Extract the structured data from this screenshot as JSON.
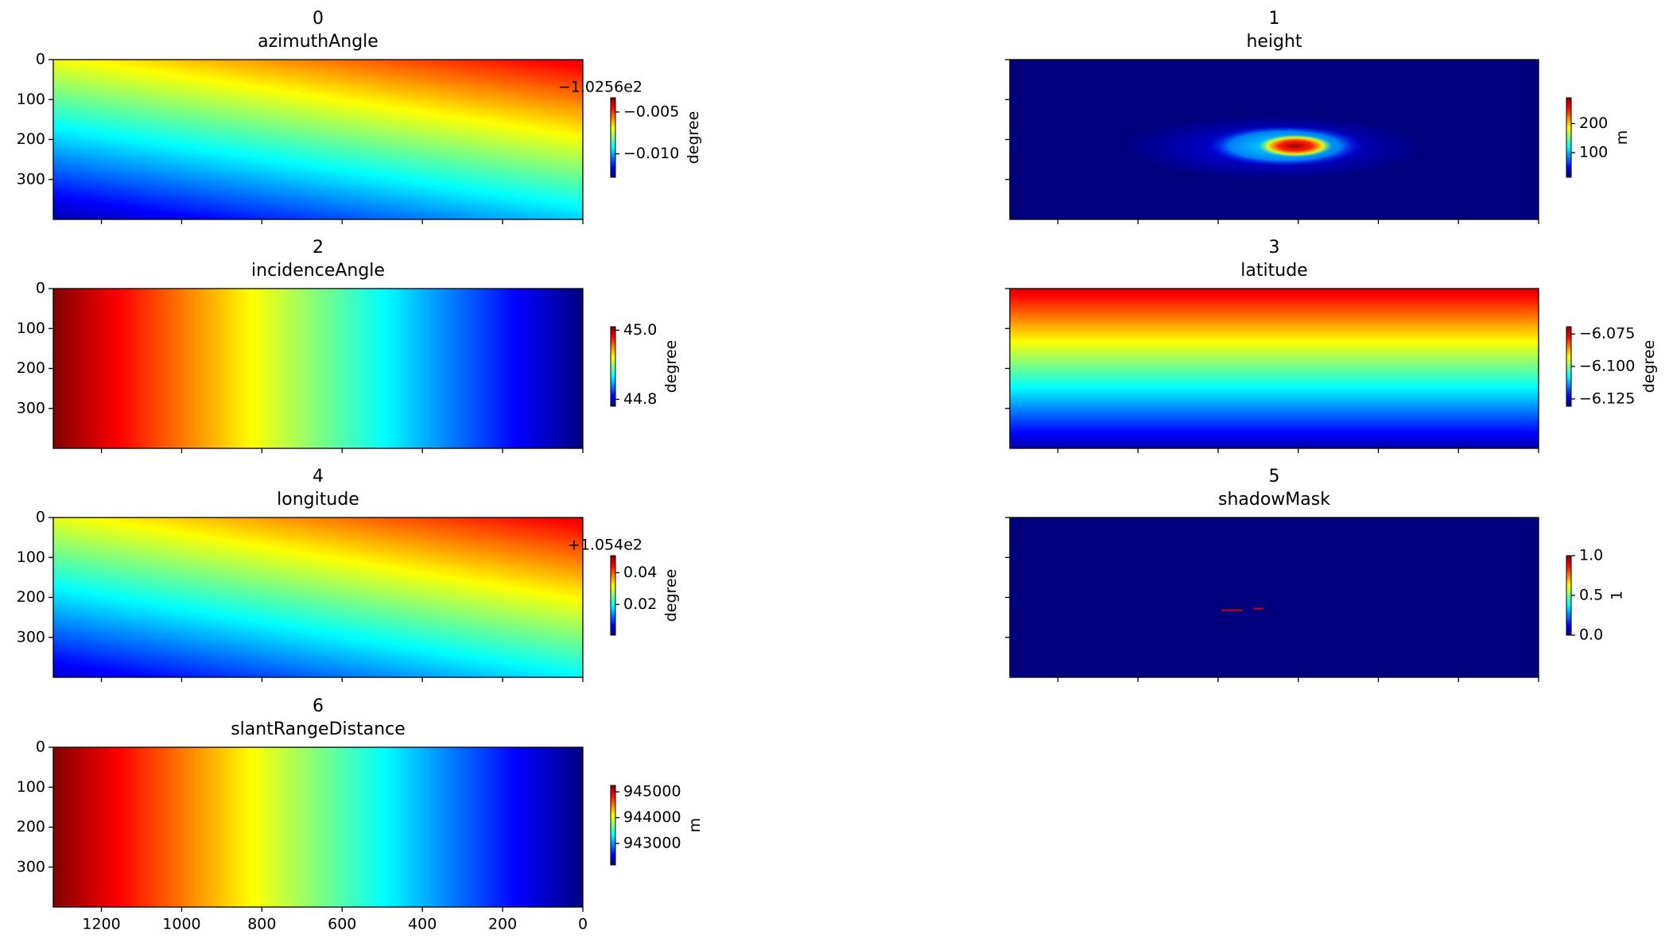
{
  "chart_data": [
    {
      "type": "heatmap",
      "title": "0",
      "subtitle": "azimuthAngle",
      "colormap": "jet",
      "xlim": [
        1320,
        0
      ],
      "xticks": [
        1200,
        1000,
        800,
        600,
        400,
        200,
        0
      ],
      "x_tick_labels": false,
      "ylim": [
        400,
        0
      ],
      "yticks": [
        0,
        100,
        200,
        300
      ],
      "y_tick_labels": true,
      "colorbar": {
        "clim": [
          -0.0128,
          -0.0033
        ],
        "ticks": [
          {
            "value": -0.005,
            "label": "−0.005"
          },
          {
            "value": -0.01,
            "label": "−0.010"
          }
        ],
        "label": "degree",
        "offset_text": "−1.0256e2"
      }
    },
    {
      "type": "heatmap",
      "title": "1",
      "subtitle": "height",
      "colormap": "jet",
      "xlim": [
        1320,
        0
      ],
      "xticks": [
        1200,
        1000,
        800,
        600,
        400,
        200,
        0
      ],
      "x_tick_labels": false,
      "ylim": [
        400,
        0
      ],
      "yticks": [
        0,
        100,
        200,
        300
      ],
      "y_tick_labels": false,
      "colorbar": {
        "clim": [
          15,
          289
        ],
        "ticks": [
          200,
          100
        ],
        "label": "m"
      }
    },
    {
      "type": "heatmap",
      "title": "2",
      "subtitle": "incidenceAngle",
      "colormap": "jet",
      "xlim": [
        1320,
        0
      ],
      "xticks": [
        1200,
        1000,
        800,
        600,
        400,
        200,
        0
      ],
      "x_tick_labels": false,
      "ylim": [
        400,
        0
      ],
      "yticks": [
        0,
        100,
        200,
        300
      ],
      "y_tick_labels": true,
      "colorbar": {
        "clim": [
          44.78,
          45.01
        ],
        "ticks": [
          {
            "value": 45,
            "label": "45.0"
          },
          44.8
        ],
        "label": "degree"
      }
    },
    {
      "type": "heatmap",
      "title": "3",
      "subtitle": "latitude",
      "colormap": "jet",
      "xlim": [
        1320,
        0
      ],
      "xticks": [
        1200,
        1000,
        800,
        600,
        400,
        200,
        0
      ],
      "x_tick_labels": false,
      "ylim": [
        400,
        0
      ],
      "yticks": [
        0,
        100,
        200,
        300
      ],
      "y_tick_labels": false,
      "colorbar": {
        "clim": [
          -6.1306,
          -6.0694
        ],
        "ticks": [
          {
            "value": -6.075,
            "label": "−6.075"
          },
          {
            "value": -6.1,
            "label": "−6.100"
          },
          {
            "value": -6.125,
            "label": "−6.125"
          }
        ],
        "label": "degree"
      }
    },
    {
      "type": "heatmap",
      "title": "4",
      "subtitle": "longitude",
      "colormap": "jet",
      "xlim": [
        1320,
        0
      ],
      "xticks": [
        1200,
        1000,
        800,
        600,
        400,
        200,
        0
      ],
      "x_tick_labels": false,
      "ylim": [
        400,
        0
      ],
      "yticks": [
        0,
        100,
        200,
        300
      ],
      "y_tick_labels": true,
      "colorbar": {
        "clim": [
          0.0007,
          0.0507
        ],
        "ticks": [
          0.04,
          0.02
        ],
        "label": "degree",
        "offset_text": "+1.054e2"
      }
    },
    {
      "type": "heatmap",
      "title": "5",
      "subtitle": "shadowMask",
      "colormap": "jet",
      "xlim": [
        1320,
        0
      ],
      "xticks": [
        1200,
        1000,
        800,
        600,
        400,
        200,
        0
      ],
      "x_tick_labels": false,
      "ylim": [
        400,
        0
      ],
      "yticks": [
        0,
        100,
        200,
        300
      ],
      "y_tick_labels": false,
      "colorbar": {
        "clim": [
          0,
          1
        ],
        "ticks": [
          {
            "value": 1,
            "label": "1.0"
          },
          0.5,
          {
            "value": 0,
            "label": "0.0"
          }
        ],
        "label": "1"
      }
    },
    {
      "type": "heatmap",
      "title": "6",
      "subtitle": "slantRangeDistance",
      "colormap": "jet",
      "xlim": [
        1320,
        0
      ],
      "xticks": [
        1200,
        1000,
        800,
        600,
        400,
        200,
        0
      ],
      "x_tick_labels": true,
      "ylim": [
        400,
        0
      ],
      "yticks": [
        0,
        100,
        200,
        300
      ],
      "y_tick_labels": true,
      "colorbar": {
        "clim": [
          942167,
          945250
        ],
        "ticks": [
          945000,
          944000,
          943000
        ],
        "label": "m"
      }
    }
  ]
}
